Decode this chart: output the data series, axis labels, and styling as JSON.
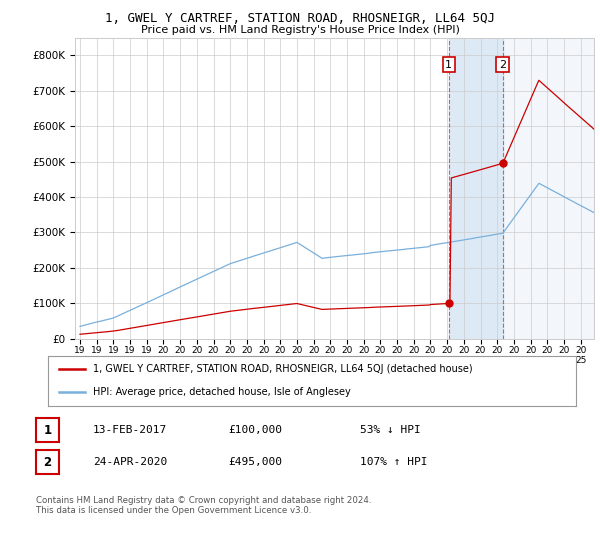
{
  "title1": "1, GWEL Y CARTREF, STATION ROAD, RHOSNEIGR, LL64 5QJ",
  "title2": "Price paid vs. HM Land Registry's House Price Index (HPI)",
  "ylim": [
    0,
    850000
  ],
  "yticks": [
    0,
    100000,
    200000,
    300000,
    400000,
    500000,
    600000,
    700000,
    800000
  ],
  "ytick_labels": [
    "£0",
    "£100K",
    "£200K",
    "£300K",
    "£400K",
    "£500K",
    "£600K",
    "£700K",
    "£800K"
  ],
  "hpi_color": "#7ab0dc",
  "price_color": "#cc0000",
  "marker_color": "#cc0000",
  "sale1_x": 2017.1,
  "sale1_y": 100000,
  "sale1_label": "1",
  "sale2_x": 2020.33,
  "sale2_y": 495000,
  "sale2_label": "2",
  "legend_line1": "1, GWEL Y CARTREF, STATION ROAD, RHOSNEIGR, LL64 5QJ (detached house)",
  "legend_line2": "HPI: Average price, detached house, Isle of Anglesey",
  "table_row1_num": "1",
  "table_row1_date": "13-FEB-2017",
  "table_row1_price": "£100,000",
  "table_row1_hpi": "53% ↓ HPI",
  "table_row2_num": "2",
  "table_row2_date": "24-APR-2020",
  "table_row2_price": "£495,000",
  "table_row2_hpi": "107% ↑ HPI",
  "footnote": "Contains HM Land Registry data © Crown copyright and database right 2024.\nThis data is licensed under the Open Government Licence v3.0.",
  "background_color": "#ffffff",
  "grid_color": "#cccccc",
  "shaded_color": "#ddeaf5",
  "xlim_left": 1994.7,
  "xlim_right": 2025.8
}
